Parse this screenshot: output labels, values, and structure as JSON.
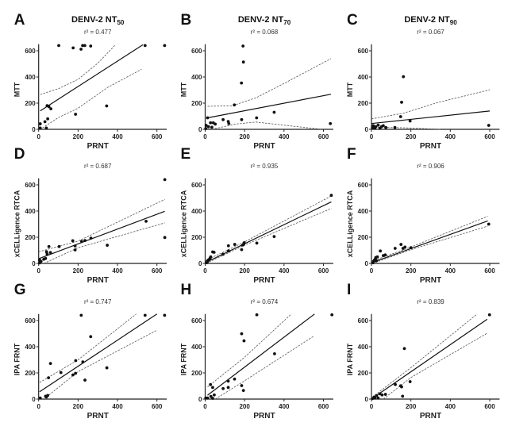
{
  "chart_data": [
    {
      "panel": "A",
      "type": "scatter",
      "title_main": "DENV-2 NT",
      "title_sub": "50",
      "r2": "r² = 0.477",
      "xlabel": "PRNT",
      "ylabel": "MTT",
      "xlim": [
        0,
        650
      ],
      "ylim": [
        0,
        650
      ],
      "xticks": [
        0,
        200,
        400,
        600
      ],
      "yticks": [
        0,
        200,
        400,
        600
      ],
      "points": [
        [
          102,
          640
        ],
        [
          175,
          622
        ],
        [
          215,
          612
        ],
        [
          223,
          640
        ],
        [
          234,
          640
        ],
        [
          264,
          636
        ],
        [
          540,
          640
        ],
        [
          639,
          640
        ],
        [
          187,
          115
        ],
        [
          345,
          179
        ],
        [
          43,
          181
        ],
        [
          52,
          173
        ],
        [
          62,
          157
        ],
        [
          46,
          80
        ],
        [
          32,
          58
        ],
        [
          8,
          42
        ],
        [
          8,
          10
        ],
        [
          39,
          10
        ]
      ],
      "fit": [
        [
          8,
          141
        ],
        [
          529,
          646
        ]
      ],
      "ci_upper": [
        [
          8,
          266
        ],
        [
          100,
          310
        ],
        [
          200,
          382
        ],
        [
          300,
          505
        ],
        [
          388,
          644
        ]
      ],
      "ci_lower": [
        [
          19,
          10
        ],
        [
          100,
          90
        ],
        [
          200,
          161
        ],
        [
          350,
          320
        ],
        [
          522,
          459
        ]
      ]
    },
    {
      "panel": "B",
      "type": "scatter",
      "title_main": "DENV-2 NT",
      "title_sub": "70",
      "r2": "r² = 0.068",
      "xlabel": "PRNT",
      "ylabel": "MTT",
      "xlim": [
        0,
        650
      ],
      "ylim": [
        0,
        650
      ],
      "xticks": [
        0,
        200,
        400,
        600
      ],
      "yticks": [
        0,
        200,
        400,
        600
      ],
      "points": [
        [
          192,
          636
        ],
        [
          194,
          514
        ],
        [
          184,
          354
        ],
        [
          148,
          186
        ],
        [
          350,
          130
        ],
        [
          635,
          44
        ],
        [
          261,
          88
        ],
        [
          185,
          74
        ],
        [
          91,
          74
        ],
        [
          117,
          60
        ],
        [
          120,
          44
        ],
        [
          12,
          88
        ],
        [
          27,
          50
        ],
        [
          41,
          50
        ],
        [
          5,
          30
        ],
        [
          17,
          20
        ],
        [
          34,
          16
        ],
        [
          3,
          6
        ],
        [
          51,
          40
        ]
      ],
      "fit": [
        [
          12,
          88
        ],
        [
          638,
          268
        ]
      ],
      "ci_upper": [
        [
          12,
          176
        ],
        [
          137,
          180
        ],
        [
          257,
          240
        ],
        [
          412,
          360
        ],
        [
          638,
          540
        ]
      ],
      "ci_lower": [
        [
          34,
          0
        ],
        [
          154,
          40
        ],
        [
          257,
          56
        ],
        [
          412,
          30
        ],
        [
          592,
          0
        ]
      ]
    },
    {
      "panel": "C",
      "type": "scatter",
      "title_main": "DENV-2 NT",
      "title_sub": "90",
      "r2": "r² = 0.067",
      "xlabel": "PRNT",
      "ylabel": "MTT",
      "xlim": [
        0,
        650
      ],
      "ylim": [
        0,
        650
      ],
      "xticks": [
        0,
        200,
        400,
        600
      ],
      "yticks": [
        0,
        200,
        400,
        600
      ],
      "points": [
        [
          162,
          402
        ],
        [
          153,
          207
        ],
        [
          148,
          97
        ],
        [
          196,
          64
        ],
        [
          595,
          30
        ],
        [
          119,
          14
        ],
        [
          9,
          28
        ],
        [
          22,
          20
        ],
        [
          34,
          32
        ],
        [
          51,
          20
        ],
        [
          60,
          28
        ],
        [
          73,
          14
        ],
        [
          17,
          8
        ],
        [
          43,
          8
        ],
        [
          5,
          12
        ]
      ],
      "fit": [
        [
          0,
          44
        ],
        [
          600,
          140
        ]
      ],
      "ci_upper": [
        [
          0,
          80
        ],
        [
          162,
          123
        ],
        [
          332,
          203
        ],
        [
          600,
          302
        ]
      ],
      "ci_lower": [
        [
          0,
          16
        ],
        [
          162,
          12
        ],
        [
          349,
          0
        ]
      ]
    },
    {
      "panel": "D",
      "type": "scatter",
      "title_main": "",
      "title_sub": "",
      "r2": "r² = 0.687",
      "xlabel": "PRNT",
      "ylabel": "xCELLigence RTCA",
      "xlim": [
        0,
        650
      ],
      "ylim": [
        0,
        650
      ],
      "xticks": [
        0,
        200,
        400,
        600
      ],
      "yticks": [
        0,
        200,
        400,
        600
      ],
      "points": [
        [
          640,
          640
        ],
        [
          640,
          198
        ],
        [
          545,
          322
        ],
        [
          348,
          139
        ],
        [
          265,
          193
        ],
        [
          235,
          175
        ],
        [
          218,
          169
        ],
        [
          173,
          173
        ],
        [
          185,
          103
        ],
        [
          185,
          133
        ],
        [
          104,
          129
        ],
        [
          52,
          129
        ],
        [
          60,
          83
        ],
        [
          40,
          89
        ],
        [
          43,
          72
        ],
        [
          35,
          38
        ],
        [
          26,
          32
        ],
        [
          5,
          26
        ],
        [
          5,
          4
        ],
        [
          12,
          16
        ]
      ],
      "fit": [
        [
          0,
          36
        ],
        [
          640,
          398
        ]
      ],
      "ci_upper": [
        [
          0,
          89
        ],
        [
          200,
          170
        ],
        [
          640,
          489
        ]
      ],
      "ci_lower": [
        [
          26,
          0
        ],
        [
          200,
          120
        ],
        [
          640,
          310
        ]
      ]
    },
    {
      "panel": "E",
      "type": "scatter",
      "title_main": "",
      "title_sub": "",
      "r2": "r² = 0.935",
      "xlabel": "PRNT",
      "ylabel": "xCELLigence RTCA",
      "xlim": [
        0,
        650
      ],
      "ylim": [
        0,
        650
      ],
      "xticks": [
        0,
        200,
        400,
        600
      ],
      "yticks": [
        0,
        200,
        400,
        600
      ],
      "points": [
        [
          640,
          520
        ],
        [
          350,
          205
        ],
        [
          262,
          155
        ],
        [
          198,
          158
        ],
        [
          195,
          145
        ],
        [
          190,
          140
        ],
        [
          185,
          105
        ],
        [
          150,
          145
        ],
        [
          118,
          135
        ],
        [
          118,
          95
        ],
        [
          90,
          70
        ],
        [
          45,
          85
        ],
        [
          38,
          88
        ],
        [
          28,
          50
        ],
        [
          25,
          40
        ],
        [
          20,
          30
        ],
        [
          15,
          25
        ],
        [
          12,
          18
        ],
        [
          10,
          10
        ],
        [
          8,
          5
        ]
      ],
      "fit": [
        [
          0,
          5
        ],
        [
          640,
          470
        ]
      ],
      "ci_upper": [
        [
          0,
          20
        ],
        [
          200,
          165
        ],
        [
          640,
          515
        ]
      ],
      "ci_lower": [
        [
          5,
          0
        ],
        [
          200,
          140
        ],
        [
          640,
          420
        ]
      ]
    },
    {
      "panel": "F",
      "type": "scatter",
      "title_main": "",
      "title_sub": "",
      "r2": "r² = 0.906",
      "xlabel": "PRNT",
      "ylabel": "xCELLigence RTCA",
      "xlim": [
        0,
        650
      ],
      "ylim": [
        0,
        650
      ],
      "xticks": [
        0,
        200,
        400,
        600
      ],
      "yticks": [
        0,
        200,
        400,
        600
      ],
      "points": [
        [
          595,
          300
        ],
        [
          200,
          120
        ],
        [
          170,
          125
        ],
        [
          160,
          115
        ],
        [
          150,
          145
        ],
        [
          120,
          115
        ],
        [
          70,
          65
        ],
        [
          60,
          60
        ],
        [
          45,
          95
        ],
        [
          30,
          50
        ],
        [
          25,
          20
        ],
        [
          22,
          45
        ],
        [
          20,
          35
        ],
        [
          15,
          25
        ],
        [
          10,
          15
        ],
        [
          8,
          5
        ]
      ],
      "fit": [
        [
          0,
          5
        ],
        [
          590,
          325
        ]
      ],
      "ci_upper": [
        [
          0,
          15
        ],
        [
          200,
          125
        ],
        [
          590,
          360
        ]
      ],
      "ci_lower": [
        [
          5,
          0
        ],
        [
          200,
          105
        ],
        [
          590,
          285
        ]
      ]
    },
    {
      "panel": "G",
      "type": "scatter",
      "title_main": "",
      "title_sub": "",
      "r2": "r² = 0.747",
      "xlabel": "PRNT",
      "ylabel": "IPA FRNT",
      "xlim": [
        0,
        650
      ],
      "ylim": [
        0,
        650
      ],
      "xticks": [
        0,
        200,
        400,
        600
      ],
      "yticks": [
        0,
        200,
        400,
        600
      ],
      "points": [
        [
          216,
          640
        ],
        [
          540,
          640
        ],
        [
          639,
          640
        ],
        [
          264,
          477
        ],
        [
          60,
          272
        ],
        [
          113,
          203
        ],
        [
          50,
          163
        ],
        [
          188,
          294
        ],
        [
          224,
          284
        ],
        [
          346,
          239
        ],
        [
          235,
          145
        ],
        [
          174,
          185
        ],
        [
          187,
          197
        ],
        [
          46,
          28
        ],
        [
          35,
          22
        ],
        [
          39,
          16
        ],
        [
          8,
          8
        ]
      ],
      "fit": [
        [
          5,
          56
        ],
        [
          600,
          650
        ]
      ],
      "ci_upper": [
        [
          5,
          127
        ],
        [
          200,
          300
        ],
        [
          495,
          650
        ]
      ],
      "ci_lower": [
        [
          39,
          16
        ],
        [
          200,
          210
        ],
        [
          596,
          523
        ]
      ]
    },
    {
      "panel": "H",
      "type": "scatter",
      "title_main": "",
      "title_sub": "",
      "r2": "r² = 0.674",
      "xlabel": "PRNT",
      "ylabel": "IPA FRNT",
      "xlim": [
        0,
        650
      ],
      "ylim": [
        0,
        650
      ],
      "xticks": [
        0,
        200,
        400,
        600
      ],
      "yticks": [
        0,
        200,
        400,
        600
      ],
      "points": [
        [
          262,
          644
        ],
        [
          643,
          644
        ],
        [
          185,
          499
        ],
        [
          197,
          445
        ],
        [
          352,
          346
        ],
        [
          149,
          153
        ],
        [
          117,
          137
        ],
        [
          117,
          89
        ],
        [
          185,
          103
        ],
        [
          194,
          66
        ],
        [
          91,
          80
        ],
        [
          27,
          111
        ],
        [
          38,
          89
        ],
        [
          46,
          32
        ],
        [
          29,
          20
        ],
        [
          12,
          8
        ],
        [
          3,
          8
        ],
        [
          38,
          6
        ]
      ],
      "fit": [
        [
          12,
          30
        ],
        [
          555,
          650
        ]
      ],
      "ci_upper": [
        [
          12,
          93
        ],
        [
          200,
          320
        ],
        [
          437,
          650
        ]
      ],
      "ci_lower": [
        [
          51,
          0
        ],
        [
          200,
          140
        ],
        [
          550,
          480
        ]
      ]
    },
    {
      "panel": "I",
      "type": "scatter",
      "title_main": "",
      "title_sub": "",
      "r2": "r² = 0.839",
      "xlabel": "PRNT",
      "ylabel": "IPA FRNT",
      "xlim": [
        0,
        650
      ],
      "ylim": [
        0,
        650
      ],
      "xticks": [
        0,
        200,
        400,
        600
      ],
      "yticks": [
        0,
        200,
        400,
        600
      ],
      "points": [
        [
          599,
          644
        ],
        [
          167,
          386
        ],
        [
          121,
          111
        ],
        [
          148,
          101
        ],
        [
          153,
          93
        ],
        [
          196,
          133
        ],
        [
          158,
          22
        ],
        [
          71,
          36
        ],
        [
          43,
          40
        ],
        [
          54,
          32
        ],
        [
          26,
          26
        ],
        [
          14,
          16
        ],
        [
          17,
          8
        ],
        [
          5,
          4
        ],
        [
          34,
          8
        ]
      ],
      "fit": [
        [
          5,
          6
        ],
        [
          587,
          610
        ]
      ],
      "ci_upper": [
        [
          5,
          16
        ],
        [
          200,
          240
        ],
        [
          536,
          650
        ]
      ],
      "ci_lower": [
        [
          60,
          0
        ],
        [
          200,
          165
        ],
        [
          587,
          503
        ]
      ]
    }
  ]
}
